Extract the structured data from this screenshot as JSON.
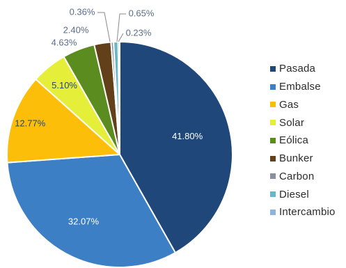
{
  "chart_data": {
    "type": "pie",
    "title": "",
    "legend_position": "right",
    "slices": [
      {
        "name": "Pasada",
        "value": 41.8,
        "label": "41.80%",
        "color": "#1F477A"
      },
      {
        "name": "Embalse",
        "value": 32.07,
        "label": "32.07%",
        "color": "#3C7FC4"
      },
      {
        "name": "Gas",
        "value": 12.77,
        "label": "12.77%",
        "color": "#FDBE0A"
      },
      {
        "name": "Solar",
        "value": 5.1,
        "label": "5.10%",
        "color": "#E5EF3A"
      },
      {
        "name": "Eólica",
        "value": 4.63,
        "label": "4.63%",
        "color": "#5B8C1F"
      },
      {
        "name": "Bunker",
        "value": 2.4,
        "label": "2.40%",
        "color": "#62411A"
      },
      {
        "name": "Carbon",
        "value": 0.36,
        "label": "0.36%",
        "color": "#8A8FA0"
      },
      {
        "name": "Diesel",
        "value": 0.65,
        "label": "0.65%",
        "color": "#67B8C7"
      },
      {
        "name": "Intercambio",
        "value": 0.23,
        "label": "0.23%",
        "color": "#8FB3DE"
      }
    ]
  }
}
